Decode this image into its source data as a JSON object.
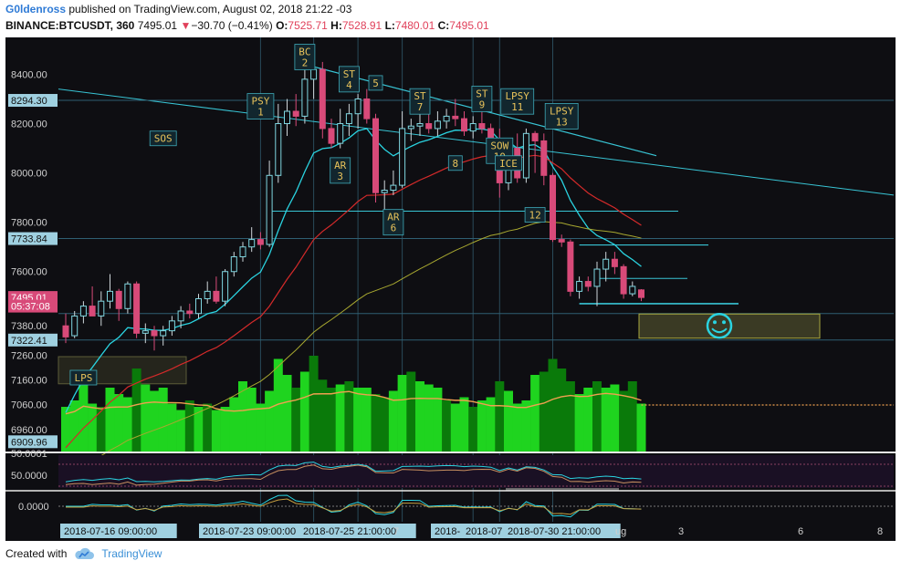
{
  "header": {
    "user": "G0ldenross",
    "published": "published on TradingView.com, August 02, 2018 21:22 -03",
    "symbol": "BINANCE:BTCUSDT, 360",
    "last": "7495.01",
    "change_arrow": "▼",
    "change": "−30.70 (−0.41%)",
    "o_label": "O:",
    "o": "7525.71",
    "h_label": "H:",
    "h": "7528.91",
    "l_label": "L:",
    "l": "7480.01",
    "c_label": "C:",
    "c": "7495.01"
  },
  "footer": {
    "created_with": "Created with",
    "brand": "TradingView"
  },
  "colors": {
    "background": "#0e0e12",
    "up": "#ffffff",
    "down": "#d84a79",
    "ema_fast": "#2ad3e0",
    "ema_slow": "#d42a2a",
    "ma_long": "#a8a830",
    "volume_up": "#1fd41f",
    "volume_dark": "#0a7a0a",
    "volume_ma": "#f0a050",
    "trendline": "#38c4d4",
    "label": "#e8c25a",
    "smiley": "#2ad3e0"
  },
  "chart_data": {
    "type": "candlestick",
    "interval": "360",
    "ylim": [
      6900,
      8520
    ],
    "price_ticks": [
      "8400.00",
      "8200.00",
      "8000.00",
      "7800.00",
      "7600.00",
      "7380.00",
      "7260.00",
      "7160.00",
      "7060.00",
      "6960.00"
    ],
    "level_labels": [
      {
        "text": "8294.30",
        "value": 8294.3
      },
      {
        "text": "7733.84",
        "value": 7733.84
      },
      {
        "text": "7495.01",
        "value": 7495.01
      },
      {
        "text": "05:37:08",
        "value": 7460
      },
      {
        "text": "7322.41",
        "value": 7322.41
      },
      {
        "text": "6909.96",
        "value": 6909.96
      }
    ],
    "candles": [
      {
        "o": 7380,
        "h": 7430,
        "l": 7310,
        "c": 7335
      },
      {
        "o": 7340,
        "h": 7440,
        "l": 7330,
        "c": 7420
      },
      {
        "o": 7420,
        "h": 7480,
        "l": 7390,
        "c": 7460
      },
      {
        "o": 7460,
        "h": 7540,
        "l": 7420,
        "c": 7420
      },
      {
        "o": 7420,
        "h": 7520,
        "l": 7380,
        "c": 7480
      },
      {
        "o": 7480,
        "h": 7590,
        "l": 7450,
        "c": 7520
      },
      {
        "o": 7520,
        "h": 7530,
        "l": 7400,
        "c": 7450
      },
      {
        "o": 7450,
        "h": 7560,
        "l": 7430,
        "c": 7550
      },
      {
        "o": 7550,
        "h": 7560,
        "l": 7330,
        "c": 7350
      },
      {
        "o": 7350,
        "h": 7390,
        "l": 7310,
        "c": 7360
      },
      {
        "o": 7360,
        "h": 7380,
        "l": 7280,
        "c": 7340
      },
      {
        "o": 7340,
        "h": 7380,
        "l": 7300,
        "c": 7360
      },
      {
        "o": 7360,
        "h": 7420,
        "l": 7340,
        "c": 7400
      },
      {
        "o": 7400,
        "h": 7460,
        "l": 7370,
        "c": 7440
      },
      {
        "o": 7440,
        "h": 7470,
        "l": 7410,
        "c": 7430
      },
      {
        "o": 7430,
        "h": 7510,
        "l": 7410,
        "c": 7490
      },
      {
        "o": 7490,
        "h": 7560,
        "l": 7470,
        "c": 7520
      },
      {
        "o": 7520,
        "h": 7580,
        "l": 7470,
        "c": 7480
      },
      {
        "o": 7480,
        "h": 7610,
        "l": 7460,
        "c": 7600
      },
      {
        "o": 7600,
        "h": 7680,
        "l": 7580,
        "c": 7660
      },
      {
        "o": 7660,
        "h": 7720,
        "l": 7640,
        "c": 7700
      },
      {
        "o": 7700,
        "h": 7780,
        "l": 7680,
        "c": 7730
      },
      {
        "o": 7730,
        "h": 7760,
        "l": 7690,
        "c": 7710
      },
      {
        "o": 7710,
        "h": 8050,
        "l": 7700,
        "c": 7990
      },
      {
        "o": 7990,
        "h": 8280,
        "l": 7960,
        "c": 8200
      },
      {
        "o": 8200,
        "h": 8300,
        "l": 8150,
        "c": 8250
      },
      {
        "o": 8250,
        "h": 8320,
        "l": 8190,
        "c": 8230
      },
      {
        "o": 8230,
        "h": 8420,
        "l": 8200,
        "c": 8380
      },
      {
        "o": 8380,
        "h": 8450,
        "l": 8300,
        "c": 8420
      },
      {
        "o": 8420,
        "h": 8450,
        "l": 8140,
        "c": 8180
      },
      {
        "o": 8180,
        "h": 8220,
        "l": 8100,
        "c": 8120
      },
      {
        "o": 8120,
        "h": 8260,
        "l": 8100,
        "c": 8200
      },
      {
        "o": 8200,
        "h": 8280,
        "l": 8150,
        "c": 8240
      },
      {
        "o": 8240,
        "h": 8320,
        "l": 8180,
        "c": 8300
      },
      {
        "o": 8300,
        "h": 8340,
        "l": 8200,
        "c": 8220
      },
      {
        "o": 8220,
        "h": 8240,
        "l": 7880,
        "c": 7920
      },
      {
        "o": 7920,
        "h": 7970,
        "l": 7820,
        "c": 7930
      },
      {
        "o": 7930,
        "h": 8010,
        "l": 7910,
        "c": 7950
      },
      {
        "o": 7950,
        "h": 8250,
        "l": 7940,
        "c": 8180
      },
      {
        "o": 8180,
        "h": 8220,
        "l": 8130,
        "c": 8190
      },
      {
        "o": 8190,
        "h": 8250,
        "l": 8150,
        "c": 8200
      },
      {
        "o": 8200,
        "h": 8240,
        "l": 8160,
        "c": 8180
      },
      {
        "o": 8180,
        "h": 8250,
        "l": 8150,
        "c": 8210
      },
      {
        "o": 8210,
        "h": 8260,
        "l": 8180,
        "c": 8230
      },
      {
        "o": 8230,
        "h": 8300,
        "l": 8190,
        "c": 8220
      },
      {
        "o": 8220,
        "h": 8250,
        "l": 8150,
        "c": 8170
      },
      {
        "o": 8170,
        "h": 8230,
        "l": 8140,
        "c": 8200
      },
      {
        "o": 8200,
        "h": 8260,
        "l": 8160,
        "c": 8180
      },
      {
        "o": 8180,
        "h": 8200,
        "l": 8110,
        "c": 8140
      },
      {
        "o": 8140,
        "h": 8180,
        "l": 7900,
        "c": 7960
      },
      {
        "o": 7960,
        "h": 8120,
        "l": 7930,
        "c": 8100
      },
      {
        "o": 8100,
        "h": 8160,
        "l": 7960,
        "c": 7980
      },
      {
        "o": 7980,
        "h": 8180,
        "l": 7960,
        "c": 8160
      },
      {
        "o": 8160,
        "h": 8170,
        "l": 8000,
        "c": 8130
      },
      {
        "o": 8130,
        "h": 8160,
        "l": 7950,
        "c": 7990
      },
      {
        "o": 7990,
        "h": 8000,
        "l": 7720,
        "c": 7730
      },
      {
        "o": 7730,
        "h": 7750,
        "l": 7700,
        "c": 7720
      },
      {
        "o": 7720,
        "h": 7730,
        "l": 7500,
        "c": 7520
      },
      {
        "o": 7520,
        "h": 7580,
        "l": 7490,
        "c": 7560
      },
      {
        "o": 7560,
        "h": 7580,
        "l": 7520,
        "c": 7540
      },
      {
        "o": 7540,
        "h": 7640,
        "l": 7460,
        "c": 7610
      },
      {
        "o": 7610,
        "h": 7680,
        "l": 7560,
        "c": 7650
      },
      {
        "o": 7650,
        "h": 7680,
        "l": 7590,
        "c": 7620
      },
      {
        "o": 7620,
        "h": 7630,
        "l": 7490,
        "c": 7510
      },
      {
        "o": 7510,
        "h": 7560,
        "l": 7500,
        "c": 7540
      },
      {
        "o": 7525.71,
        "h": 7528.91,
        "l": 7480.01,
        "c": 7495.01
      }
    ],
    "volume": [
      28,
      32,
      44,
      30,
      28,
      40,
      36,
      34,
      52,
      42,
      38,
      40,
      30,
      26,
      32,
      28,
      30,
      26,
      28,
      34,
      44,
      40,
      30,
      38,
      58,
      48,
      40,
      50,
      60,
      45,
      40,
      42,
      44,
      40,
      40,
      36,
      34,
      38,
      48,
      50,
      44,
      42,
      40,
      32,
      30,
      34,
      28,
      32,
      34,
      44,
      38,
      30,
      32,
      48,
      50,
      58,
      52,
      44,
      36,
      40,
      44,
      40,
      42,
      38,
      44,
      30
    ],
    "volume_dark_flags": [
      0,
      0,
      0,
      0,
      1,
      0,
      0,
      0,
      1,
      0,
      0,
      0,
      0,
      0,
      1,
      0,
      1,
      0,
      0,
      0,
      0,
      0,
      0,
      0,
      0,
      0,
      1,
      0,
      1,
      1,
      1,
      0,
      1,
      0,
      0,
      1,
      1,
      0,
      0,
      1,
      0,
      0,
      0,
      1,
      0,
      0,
      1,
      0,
      0,
      1,
      0,
      0,
      0,
      0,
      1,
      1,
      1,
      1,
      0,
      0,
      1,
      0,
      0,
      1,
      1,
      0
    ],
    "wyckoff_labels": [
      {
        "text": "LPS",
        "bar": 2,
        "price": 7170
      },
      {
        "text": "SOS",
        "bar": 11,
        "price": 8140
      },
      {
        "text": "PSY\n1",
        "bar": 22,
        "price": 8270
      },
      {
        "text": "BC\n2",
        "bar": 27,
        "price": 8470
      },
      {
        "text": "ST\n4",
        "bar": 32,
        "price": 8380
      },
      {
        "text": "5",
        "bar": 35,
        "price": 8365
      },
      {
        "text": "AR\n3",
        "bar": 31,
        "price": 8010
      },
      {
        "text": "AR\n6",
        "bar": 37,
        "price": 7800
      },
      {
        "text": "ST\n7",
        "bar": 40,
        "price": 8290
      },
      {
        "text": "8",
        "bar": 44,
        "price": 8040
      },
      {
        "text": "ST\n9",
        "bar": 47,
        "price": 8300
      },
      {
        "text": "LPSY\n11",
        "bar": 51,
        "price": 8290
      },
      {
        "text": "SOW\n10",
        "bar": 49,
        "price": 8090
      },
      {
        "text": "ICE",
        "bar": 50,
        "price": 8040
      },
      {
        "text": "12",
        "bar": 53,
        "price": 7830
      },
      {
        "text": "LPSY\n13",
        "bar": 56,
        "price": 8230
      }
    ],
    "date_labels": [
      "2018-07-16 09:00:00",
      "2018-07-23 09:00:00",
      "2018-07-25 21:00:00",
      "7",
      "2018-",
      "2018-07",
      "2018-07-30 21:00:00",
      "ug",
      "3",
      "6",
      "8"
    ],
    "oscillator_1_ticks": [
      "50.0001",
      "50.0000"
    ],
    "oscillator_2_ticks": [
      "0.0000"
    ]
  }
}
